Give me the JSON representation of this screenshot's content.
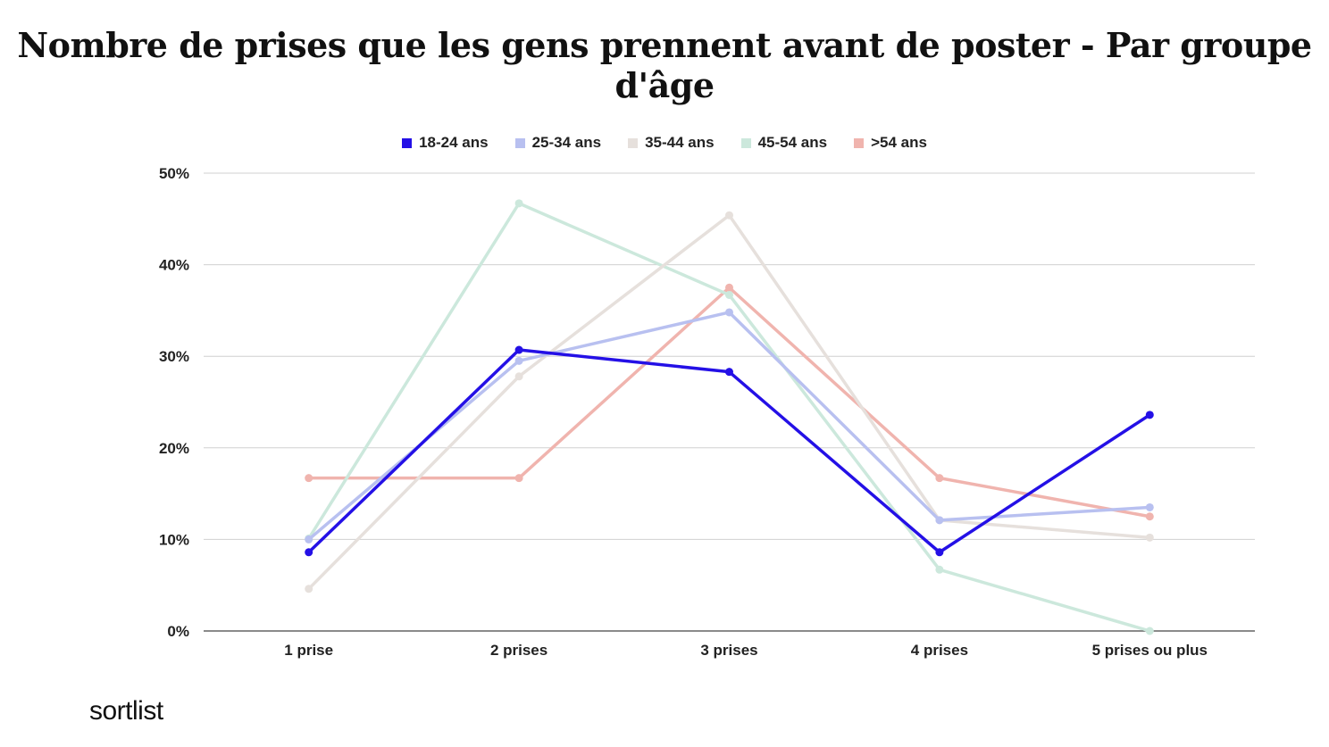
{
  "title": "Nombre de prises que les gens prennent avant de poster - Par groupe d'âge",
  "brand": "sortlist",
  "chart_data": {
    "type": "line",
    "title": "Nombre de prises que les gens prennent avant de poster - Par groupe d'âge",
    "categories": [
      "1 prise",
      "2 prises",
      "3 prises",
      "4 prises",
      "5 prises ou plus"
    ],
    "y_ticks": [
      "0%",
      "10%",
      "20%",
      "30%",
      "40%",
      "50%"
    ],
    "ylim": [
      0,
      50
    ],
    "grid": true,
    "legend_position": "top",
    "series": [
      {
        "name": "18-24 ans",
        "color": "#2410e6",
        "values": [
          8.6,
          30.7,
          28.3,
          8.6,
          23.6
        ]
      },
      {
        "name": "25-34 ans",
        "color": "#b8c0f0",
        "values": [
          10.0,
          29.5,
          34.8,
          12.1,
          13.5
        ]
      },
      {
        "name": "35-44 ans",
        "color": "#e6e0dc",
        "values": [
          4.6,
          27.8,
          45.4,
          12.1,
          10.2
        ]
      },
      {
        "name": "45-54 ans",
        "color": "#cce8dc",
        "values": [
          10.1,
          46.7,
          36.7,
          6.7,
          0.0
        ]
      },
      {
        "name": ">54 ans",
        "color": "#f0b4ae",
        "values": [
          16.7,
          16.7,
          37.5,
          16.7,
          12.5
        ]
      }
    ]
  }
}
